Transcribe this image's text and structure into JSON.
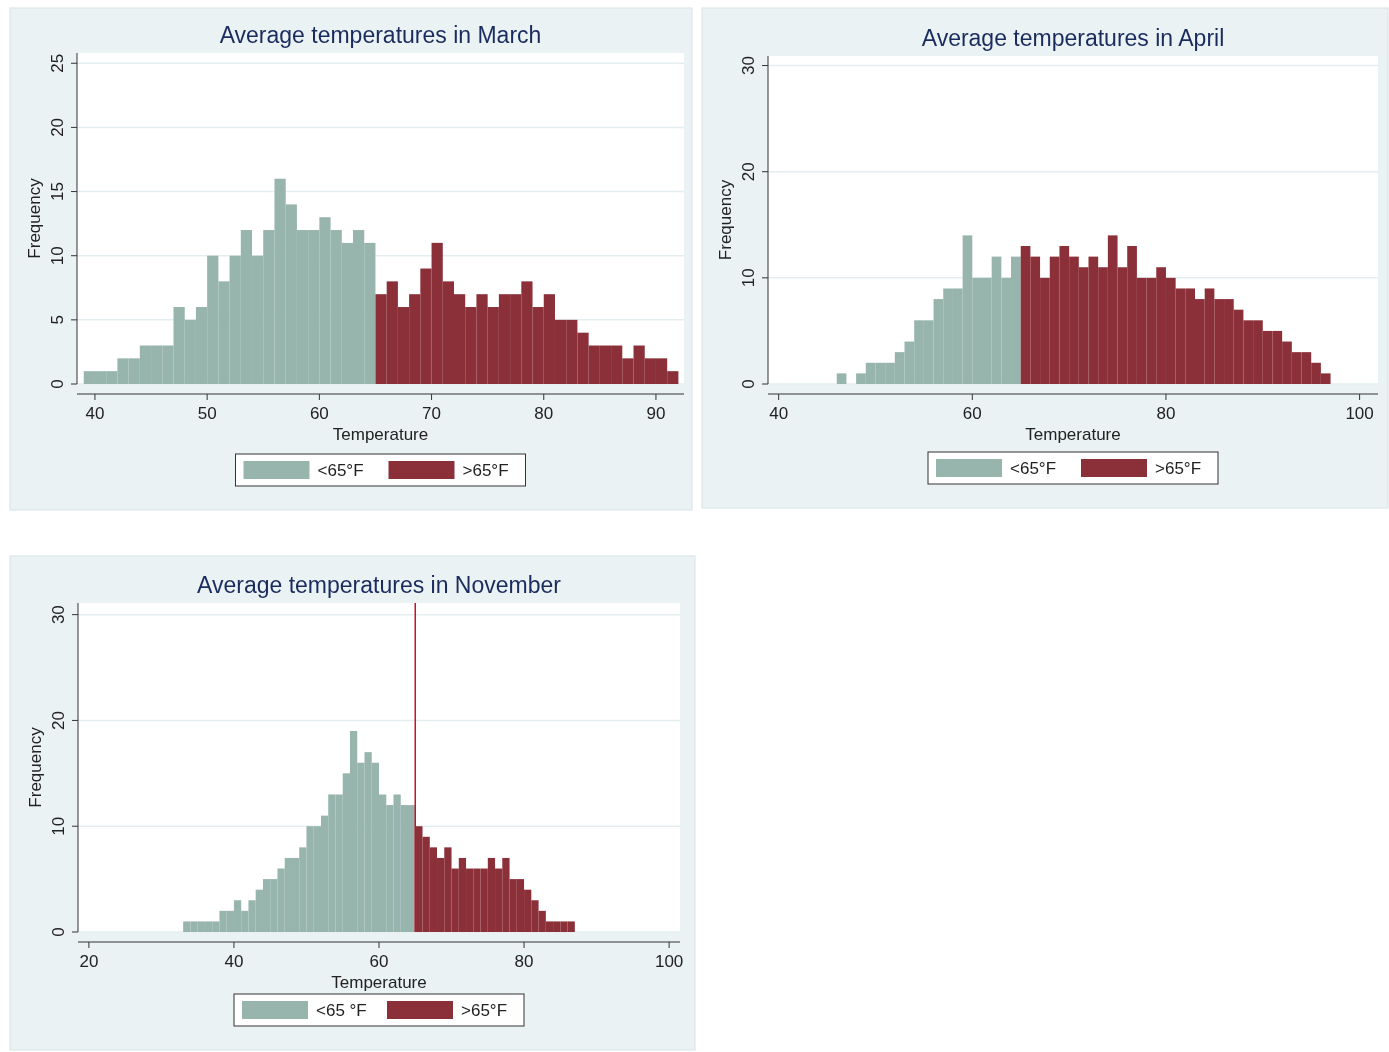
{
  "chart_data": [
    {
      "type": "histogram",
      "title": "Average temperatures in March",
      "xlabel": "Temperature",
      "ylabel": "Frequency",
      "xlim": [
        38.4,
        92.5
      ],
      "xticks": [
        40,
        50,
        60,
        70,
        80,
        90
      ],
      "ylim": [
        0,
        25.8
      ],
      "yticks": [
        0,
        5,
        10,
        15,
        20,
        25
      ],
      "grid": "y",
      "legend": "bottom",
      "bins": [
        39,
        40,
        41,
        42,
        43,
        44,
        45,
        46,
        47,
        48,
        49,
        50,
        51,
        52,
        53,
        54,
        55,
        56,
        57,
        58,
        59,
        60,
        61,
        62,
        63,
        64,
        65,
        66,
        67,
        68,
        69,
        70,
        71,
        72,
        73,
        74,
        75,
        76,
        77,
        78,
        79,
        80,
        81,
        82,
        83,
        84,
        85,
        86,
        87,
        88,
        89,
        90,
        91,
        92
      ],
      "series": [
        {
          "name": "<65°F",
          "color": "#97b4ad",
          "values": [
            1,
            1,
            1,
            2,
            2,
            3,
            3,
            3,
            6,
            5,
            6,
            10,
            8,
            10,
            12,
            10,
            12,
            16,
            14,
            12,
            12,
            13,
            12,
            11,
            12,
            11,
            null,
            null,
            null,
            null,
            null,
            null,
            null,
            null,
            null,
            null,
            null,
            null,
            null,
            null,
            null,
            null,
            null,
            null,
            null,
            null,
            null,
            null,
            null,
            null,
            null,
            null,
            null
          ]
        },
        {
          "name": ">65°F",
          "color": "#8b2f38",
          "values": [
            null,
            null,
            null,
            null,
            null,
            null,
            null,
            null,
            null,
            null,
            null,
            null,
            null,
            null,
            null,
            null,
            null,
            null,
            null,
            null,
            null,
            null,
            null,
            null,
            null,
            null,
            7,
            8,
            6,
            7,
            9,
            11,
            8,
            7,
            6,
            7,
            6,
            7,
            7,
            8,
            6,
            7,
            5,
            5,
            4,
            3,
            3,
            3,
            2,
            3,
            2,
            2,
            1
          ]
        }
      ]
    },
    {
      "type": "histogram",
      "title": "Average temperatures in April",
      "xlabel": "Temperature",
      "ylabel": "Frequency",
      "xlim": [
        38.9,
        101.9
      ],
      "xticks": [
        40,
        60,
        80,
        100
      ],
      "ylim": [
        0,
        30.9
      ],
      "yticks": [
        0,
        10,
        20,
        30
      ],
      "grid": "y",
      "legend": "bottom",
      "bins": [
        46,
        47,
        48,
        49,
        50,
        51,
        52,
        53,
        54,
        55,
        56,
        57,
        58,
        59,
        60,
        61,
        62,
        63,
        64,
        65,
        66,
        67,
        68,
        69,
        70,
        71,
        72,
        73,
        74,
        75,
        76,
        77,
        78,
        79,
        80,
        81,
        82,
        83,
        84,
        85,
        86,
        87,
        88,
        89,
        90,
        91,
        92,
        93,
        94,
        95,
        96,
        97
      ],
      "series": [
        {
          "name": "<65°F",
          "color": "#97b4ad",
          "values": [
            1,
            0,
            1,
            2,
            2,
            2,
            3,
            4,
            6,
            6,
            8,
            9,
            9,
            14,
            10,
            10,
            12,
            10,
            12,
            null,
            null,
            null,
            null,
            null,
            null,
            null,
            null,
            null,
            null,
            null,
            null,
            null,
            null,
            null,
            null,
            null,
            null,
            null,
            null,
            null,
            null,
            null,
            null,
            null,
            null,
            null,
            null,
            null,
            null,
            null,
            null
          ]
        },
        {
          "name": ">65°F",
          "color": "#8b2f38",
          "values": [
            null,
            null,
            null,
            null,
            null,
            null,
            null,
            null,
            null,
            null,
            null,
            null,
            null,
            null,
            null,
            null,
            null,
            null,
            null,
            13,
            12,
            10,
            12,
            13,
            12,
            11,
            12,
            11,
            14,
            11,
            13,
            10,
            10,
            11,
            10,
            9,
            9,
            8,
            9,
            8,
            8,
            7,
            6,
            6,
            5,
            5,
            4,
            3,
            3,
            2,
            1
          ]
        }
      ]
    },
    {
      "type": "histogram",
      "title": "Average temperatures in November",
      "xlabel": "Temperature",
      "ylabel": "Frequency",
      "xlim": [
        18.5,
        101.5
      ],
      "xticks": [
        20,
        40,
        60,
        80,
        100
      ],
      "ylim": [
        0,
        31.1
      ],
      "yticks": [
        0,
        10,
        20,
        30
      ],
      "grid": "y",
      "legend": "bottom",
      "ref_lines": [
        {
          "axis": "x",
          "value": 65,
          "color": "#c8102e"
        }
      ],
      "bins": [
        33,
        34,
        35,
        36,
        37,
        38,
        39,
        40,
        41,
        42,
        43,
        44,
        45,
        46,
        47,
        48,
        49,
        50,
        51,
        52,
        53,
        54,
        55,
        56,
        57,
        58,
        59,
        60,
        61,
        62,
        63,
        64,
        65,
        66,
        67,
        68,
        69,
        70,
        71,
        72,
        73,
        74,
        75,
        76,
        77,
        78,
        79,
        80,
        81,
        82,
        83,
        84,
        85,
        86,
        87
      ],
      "series": [
        {
          "name": "<65 °F",
          "color": "#97b4ad",
          "values": [
            1,
            1,
            1,
            1,
            1,
            2,
            2,
            3,
            2,
            3,
            4,
            5,
            5,
            6,
            7,
            7,
            8,
            10,
            10,
            11,
            13,
            13,
            15,
            19,
            16,
            17,
            16,
            13,
            12,
            13,
            12,
            12,
            null,
            null,
            null,
            null,
            null,
            null,
            null,
            null,
            null,
            null,
            null,
            null,
            null,
            null,
            null,
            null,
            null,
            null,
            null,
            null,
            null,
            null
          ]
        },
        {
          "name": ">65°F",
          "color": "#8b2f38",
          "values": [
            null,
            null,
            null,
            null,
            null,
            null,
            null,
            null,
            null,
            null,
            null,
            null,
            null,
            null,
            null,
            null,
            null,
            null,
            null,
            null,
            null,
            null,
            null,
            null,
            null,
            null,
            null,
            null,
            null,
            null,
            null,
            null,
            10,
            9,
            8,
            7,
            8,
            6,
            7,
            6,
            6,
            6,
            7,
            6,
            7,
            5,
            5,
            4,
            3,
            2,
            1,
            1,
            1,
            1
          ]
        }
      ]
    }
  ]
}
